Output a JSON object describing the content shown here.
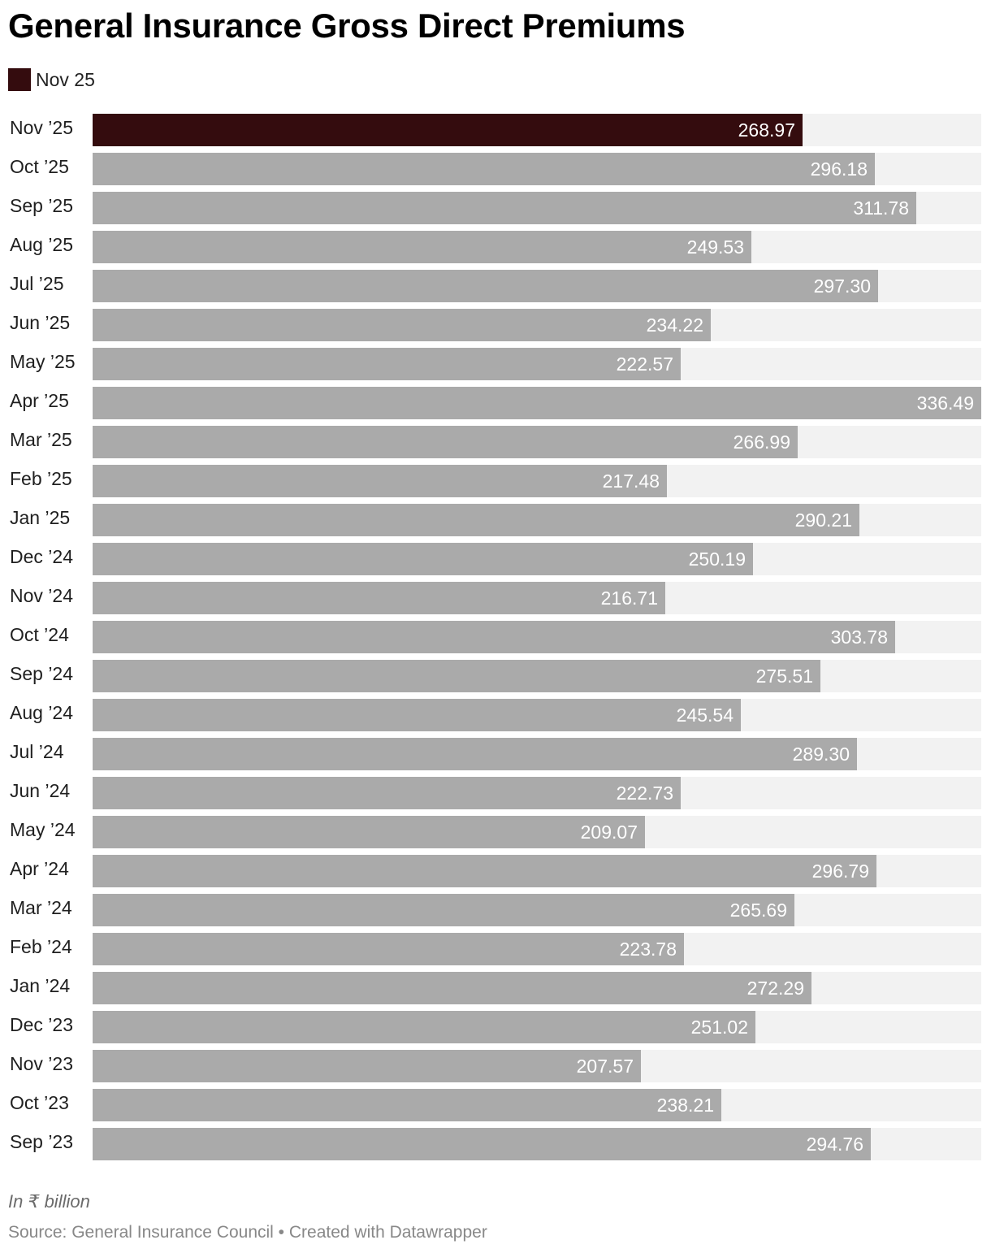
{
  "title": "General Insurance Gross Direct Premiums",
  "legend": [
    {
      "label": "Nov 25",
      "color": "#340c0e"
    }
  ],
  "colors": {
    "highlight": "#340c0e",
    "bar": "#aaaaaa",
    "track": "#f2f2f2"
  },
  "chart_data": {
    "type": "bar",
    "orientation": "horizontal",
    "categories": [
      "Nov ’25",
      "Oct ’25",
      "Sep ’25",
      "Aug ’25",
      "Jul ’25",
      "Jun ’25",
      "May ’25",
      "Apr ’25",
      "Mar ’25",
      "Feb ’25",
      "Jan ’25",
      "Dec ’24",
      "Nov ’24",
      "Oct ’24",
      "Sep ’24",
      "Aug ’24",
      "Jul ’24",
      "Jun ’24",
      "May ’24",
      "Apr ’24",
      "Mar ’24",
      "Feb ’24",
      "Jan ’24",
      "Dec ’23",
      "Nov ’23",
      "Oct ’23",
      "Sep ’23"
    ],
    "values": [
      268.97,
      296.18,
      311.78,
      249.53,
      297.3,
      234.22,
      222.57,
      336.49,
      266.99,
      217.48,
      290.21,
      250.19,
      216.71,
      303.78,
      275.51,
      245.54,
      289.3,
      222.73,
      209.07,
      296.79,
      265.69,
      223.78,
      272.29,
      251.02,
      207.57,
      238.21,
      294.76
    ],
    "value_labels": [
      "268.97",
      "296.18",
      "311.78",
      "249.53",
      "297.30",
      "234.22",
      "222.57",
      "336.49",
      "266.99",
      "217.48",
      "290.21",
      "250.19",
      "216.71",
      "303.78",
      "275.51",
      "245.54",
      "289.30",
      "222.73",
      "209.07",
      "296.79",
      "265.69",
      "223.78",
      "272.29",
      "251.02",
      "207.57",
      "238.21",
      "294.76"
    ],
    "highlight_index": 0,
    "xlim": [
      0,
      336.49
    ]
  },
  "notes": "In ₹ billion",
  "source": "Source: General Insurance Council • Created with Datawrapper"
}
